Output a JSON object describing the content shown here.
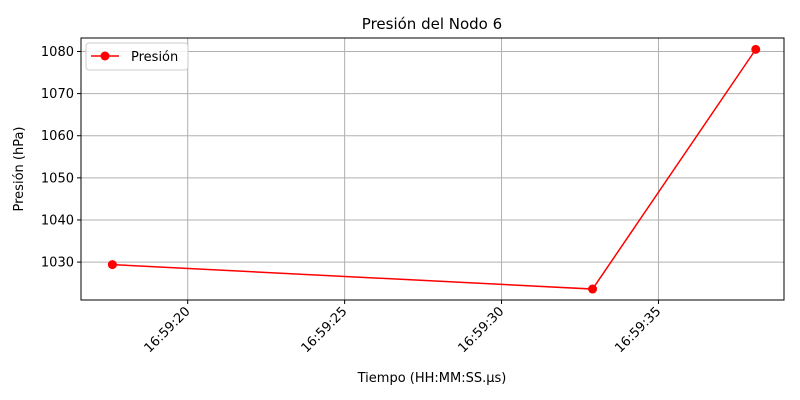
{
  "chart_data": {
    "type": "line",
    "title": "Presión del Nodo 6",
    "xlabel": "Tiempo (HH:MM:SS.µs)",
    "ylabel": "Presión (hPa)",
    "x_tick_labels": [
      "16:59:20",
      "16:59:25",
      "16:59:30",
      "16:59:35"
    ],
    "y_ticks": [
      1030,
      1040,
      1050,
      1060,
      1070,
      1080
    ],
    "xlim": [
      "16:59:16.6",
      "16:59:39.0"
    ],
    "ylim": [
      1021.0,
      1083.2
    ],
    "grid": true,
    "legend_position": "top-left",
    "series": [
      {
        "name": "Presión",
        "color": "#ff0000",
        "marker": "circle",
        "x": [
          "16:59:17.6",
          "16:59:32.9",
          "16:59:38.1"
        ],
        "y": [
          1029.4,
          1023.6,
          1080.5
        ]
      }
    ]
  }
}
